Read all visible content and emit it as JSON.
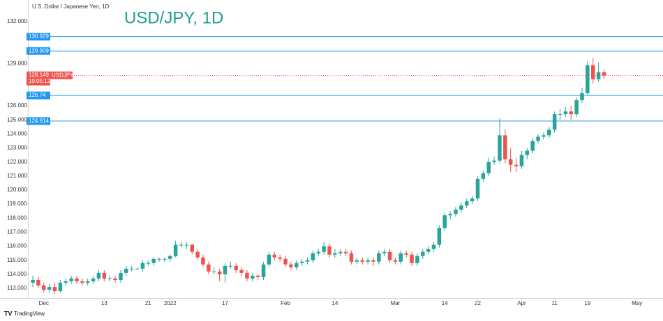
{
  "chart_data": {
    "type": "candlestick",
    "title": "USD/JPY, 1D",
    "subtitle": "U.S. Dollar / Japanese Yen, 1D",
    "symbol": "USDJPY",
    "countdown": "10:05:12",
    "brand": "TradingView",
    "up_color": "#26a69a",
    "down_color": "#ef5350",
    "title_color": "#1f9e8f",
    "open": [
      113.4,
      113.6,
      113.2,
      112.9,
      113.1,
      112.8,
      113.4,
      113.5,
      113.7,
      113.5,
      113.4,
      113.5,
      113.7,
      114.1,
      113.7,
      113.7,
      113.6,
      114.1,
      114.4,
      114.4,
      114.4,
      114.8,
      114.8,
      115.1,
      115.1,
      115.1,
      115.3,
      116.1,
      116.1,
      116.1,
      115.6,
      115.2,
      114.7,
      114.2,
      114.2,
      114.0,
      114.6,
      114.6,
      114.3,
      114.1,
      113.7,
      113.9,
      113.8,
      114.7,
      115.4,
      115.2,
      115.1,
      114.7,
      114.5,
      114.8,
      114.9,
      115.0,
      115.5,
      115.6,
      116.0,
      115.4,
      115.5,
      115.6,
      115.5,
      114.9,
      115.0,
      114.9,
      115.0,
      114.9,
      115.5,
      115.6,
      115.0,
      114.9,
      115.5,
      115.4,
      114.8,
      115.3,
      115.6,
      115.8,
      116.1,
      117.3,
      118.2,
      118.3,
      118.6,
      118.9,
      119.2,
      119.4,
      120.8,
      121.2,
      122.0,
      122.1,
      123.9,
      122.2,
      121.8,
      121.7,
      122.5,
      122.8,
      123.5,
      123.8,
      123.9,
      124.3,
      125.4,
      125.4,
      125.6,
      125.4,
      126.4,
      126.9,
      128.9,
      127.9,
      128.4
    ],
    "high": [
      113.9,
      113.8,
      113.4,
      113.3,
      113.4,
      113.6,
      113.7,
      113.9,
      113.9,
      113.7,
      113.7,
      113.9,
      114.3,
      114.3,
      113.9,
      113.9,
      114.3,
      114.6,
      114.6,
      114.5,
      115.0,
      115.0,
      115.2,
      115.2,
      115.2,
      115.4,
      116.4,
      116.3,
      116.3,
      116.2,
      115.8,
      115.4,
      114.9,
      114.5,
      114.4,
      114.8,
      114.9,
      114.8,
      114.5,
      114.3,
      114.1,
      114.0,
      114.9,
      115.6,
      115.6,
      115.4,
      115.3,
      114.9,
      115.0,
      115.1,
      115.2,
      115.7,
      115.8,
      116.3,
      116.2,
      115.8,
      115.8,
      115.8,
      115.7,
      115.2,
      115.2,
      115.2,
      115.2,
      115.7,
      115.8,
      115.8,
      115.2,
      115.7,
      115.7,
      115.6,
      115.5,
      115.8,
      116.0,
      116.3,
      117.5,
      118.4,
      118.5,
      118.8,
      119.1,
      119.4,
      119.6,
      121.0,
      121.4,
      122.3,
      122.4,
      125.1,
      124.3,
      123.0,
      122.3,
      122.8,
      123.0,
      123.7,
      124.0,
      124.1,
      124.5,
      125.6,
      125.8,
      125.9,
      126.0,
      126.6,
      127.3,
      129.2,
      129.4,
      129.1,
      128.6
    ],
    "low": [
      113.1,
      113.0,
      112.7,
      112.7,
      112.6,
      112.7,
      113.2,
      113.3,
      113.3,
      113.2,
      113.2,
      113.3,
      113.5,
      113.5,
      113.5,
      113.4,
      113.4,
      113.9,
      114.2,
      114.3,
      114.2,
      114.6,
      114.6,
      114.9,
      114.9,
      114.9,
      115.2,
      115.9,
      115.8,
      115.4,
      115.0,
      114.5,
      114.0,
      114.0,
      113.5,
      113.4,
      114.4,
      114.1,
      113.9,
      113.5,
      113.5,
      113.6,
      113.6,
      114.5,
      115.0,
      114.9,
      114.5,
      114.3,
      114.3,
      114.6,
      114.7,
      114.8,
      115.3,
      115.4,
      115.2,
      115.2,
      115.3,
      115.3,
      114.7,
      114.7,
      114.7,
      114.7,
      114.6,
      114.7,
      115.3,
      114.8,
      114.7,
      114.7,
      115.2,
      114.6,
      114.6,
      115.1,
      115.4,
      115.6,
      115.9,
      117.1,
      117.9,
      118.1,
      118.4,
      118.7,
      119.0,
      119.2,
      120.6,
      121.0,
      121.8,
      121.9,
      121.9,
      121.3,
      121.3,
      121.5,
      122.2,
      122.6,
      123.3,
      123.6,
      123.7,
      124.1,
      125.0,
      125.2,
      125.0,
      125.2,
      126.2,
      126.8,
      127.6,
      127.7,
      127.9
    ],
    "close": [
      113.6,
      113.2,
      112.9,
      113.1,
      112.8,
      113.4,
      113.5,
      113.7,
      113.5,
      113.4,
      113.5,
      113.7,
      114.1,
      113.7,
      113.7,
      113.6,
      114.1,
      114.4,
      114.4,
      114.4,
      114.8,
      114.8,
      115.1,
      115.1,
      115.1,
      115.3,
      116.1,
      116.1,
      116.1,
      115.6,
      115.2,
      114.7,
      114.2,
      114.2,
      114.0,
      114.6,
      114.6,
      114.3,
      114.1,
      113.7,
      113.9,
      113.8,
      114.7,
      115.4,
      115.2,
      115.1,
      114.7,
      114.5,
      114.8,
      114.9,
      115.0,
      115.5,
      115.6,
      116.0,
      115.4,
      115.5,
      115.6,
      115.5,
      114.9,
      115.0,
      114.9,
      115.0,
      114.9,
      115.5,
      115.6,
      115.0,
      114.9,
      115.5,
      115.4,
      114.8,
      115.3,
      115.6,
      115.8,
      116.1,
      117.3,
      118.2,
      118.3,
      118.6,
      118.9,
      119.2,
      119.4,
      120.8,
      121.2,
      122.0,
      122.1,
      123.9,
      122.2,
      121.8,
      121.7,
      122.5,
      122.8,
      123.5,
      123.8,
      123.9,
      124.3,
      125.4,
      125.4,
      125.6,
      125.4,
      126.4,
      126.9,
      128.9,
      127.9,
      128.4,
      128.149
    ],
    "xlim": [
      -0.64,
      114.74
    ],
    "xticks": [
      {
        "value": 2,
        "label": "Dec"
      },
      13,
      21,
      {
        "value": 25,
        "label": "2022"
      },
      {
        "value": 35,
        "label": "17"
      },
      {
        "value": 46,
        "label": "Feb"
      },
      {
        "value": 55,
        "label": "14"
      },
      {
        "value": 66,
        "label": "Mar"
      },
      {
        "value": 75,
        "label": "14"
      },
      {
        "value": 81,
        "label": "22"
      },
      {
        "value": 89,
        "label": "Apr"
      },
      {
        "value": 95,
        "label": "11"
      },
      {
        "value": 101,
        "label": "19"
      },
      {
        "value": 110,
        "label": "May"
      }
    ],
    "ylim": [
      112.31,
      133.54
    ],
    "yticks": [
      {
        "value": 113,
        "label": "113.000"
      },
      {
        "value": 114,
        "label": "114.000"
      },
      {
        "value": 115,
        "label": "115.000"
      },
      {
        "value": 116,
        "label": "116.000"
      },
      {
        "value": 117,
        "label": "117.000"
      },
      {
        "value": 118,
        "label": "118.000"
      },
      {
        "value": 119,
        "label": "119.000"
      },
      {
        "value": 120,
        "label": "120.000"
      },
      {
        "value": 121,
        "label": "121.000"
      },
      {
        "value": 122,
        "label": "122.000"
      },
      {
        "value": 123,
        "label": "123.000"
      },
      {
        "value": 124,
        "label": "124.000"
      },
      {
        "value": 125,
        "label": "125.000"
      },
      {
        "value": 126,
        "label": "126.000"
      },
      {
        "value": 129,
        "label": "129.000"
      },
      {
        "value": 132,
        "label": "132.000"
      }
    ],
    "levels": {
      "color": "#2196f3",
      "values": [
        130.929,
        129.909,
        126.74,
        124.914
      ]
    }
  }
}
